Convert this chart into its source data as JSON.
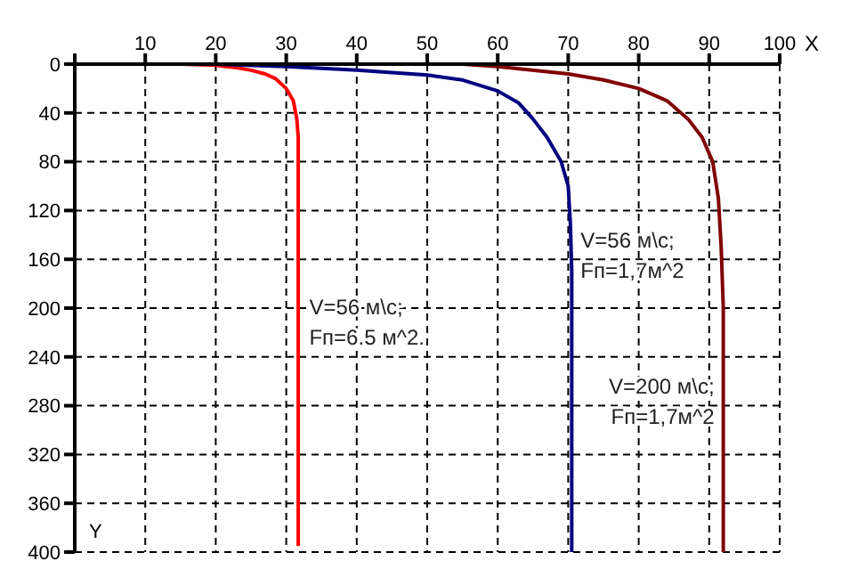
{
  "chart_data": {
    "type": "line",
    "xlabel": "X",
    "ylabel": "Y",
    "xlim": [
      0,
      100
    ],
    "xticks": [
      {
        "value": 0,
        "label": null
      },
      10,
      20,
      30,
      40,
      50,
      60,
      70,
      80,
      90,
      100
    ],
    "ylim": [
      400,
      0
    ],
    "yticks": [
      0,
      40,
      80,
      120,
      160,
      200,
      240,
      280,
      320,
      360,
      400
    ],
    "grid": true,
    "line_style": "solid",
    "marker": "none",
    "series": [
      {
        "color": "#ff0000",
        "x": [
          0,
          15,
          20,
          23,
          25,
          27,
          28.5,
          30,
          31,
          31.5,
          31.7,
          31.7
        ],
        "values": [
          0,
          0,
          1,
          3,
          5,
          8,
          12,
          20,
          30,
          45,
          60,
          395
        ]
      },
      {
        "color": "#000080",
        "x": [
          0,
          20,
          30,
          40,
          50,
          55,
          60,
          63,
          65,
          67,
          69,
          70,
          70.3,
          70.5,
          70.5
        ],
        "values": [
          0,
          0,
          2,
          5,
          9,
          13,
          22,
          32,
          45,
          60,
          80,
          100,
          130,
          170,
          400
        ]
      },
      {
        "color": "#800000",
        "x": [
          0,
          55,
          60,
          70,
          75,
          80,
          84,
          87,
          89,
          90.5,
          91.3,
          91.7,
          92,
          92
        ],
        "values": [
          0,
          0,
          2,
          8,
          13,
          20,
          30,
          45,
          60,
          80,
          110,
          150,
          200,
          400
        ]
      }
    ],
    "annotations": [
      {
        "text": "V=56 м\\с;\nFп=6.5 м^2.",
        "x": 32,
        "y": 205
      },
      {
        "text": "V=56 м\\с;\nFп=1,7м^2",
        "x": 70.5,
        "y": 150
      },
      {
        "text": "V=200 м\\с;\nFп=1,7м^2",
        "x": 92,
        "y": 270
      }
    ]
  }
}
